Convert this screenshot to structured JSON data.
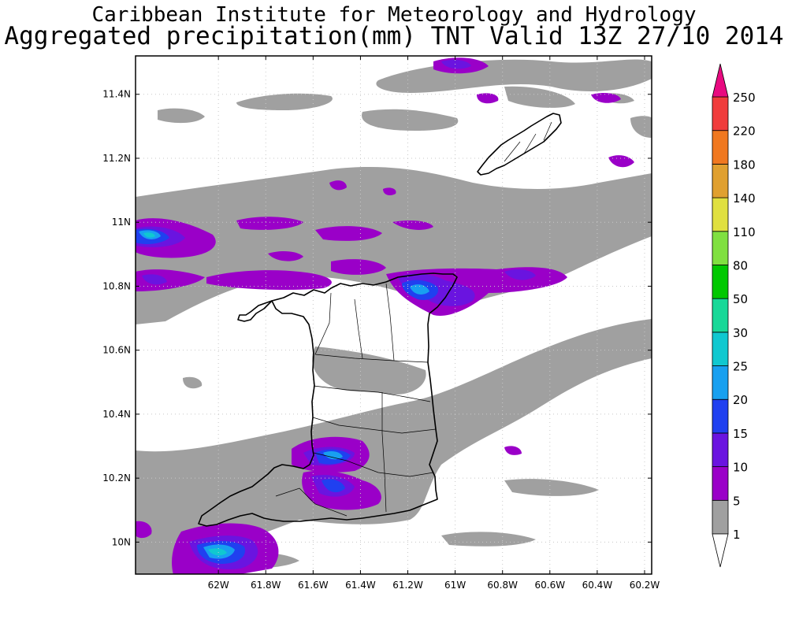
{
  "header": {
    "title_line1": "Caribbean Institute for Meteorology and Hydrology",
    "title_line2": "Aggregated precipitation(mm) TNT Valid 13Z 27/10 2014"
  },
  "map": {
    "lon_range": [
      -62.35,
      -60.17
    ],
    "lat_range": [
      9.9,
      11.52
    ],
    "lon_ticks": [
      {
        "value": -62.0,
        "label": "62W"
      },
      {
        "value": -61.8,
        "label": "61.8W"
      },
      {
        "value": -61.6,
        "label": "61.6W"
      },
      {
        "value": -61.4,
        "label": "61.4W"
      },
      {
        "value": -61.2,
        "label": "61.2W"
      },
      {
        "value": -61.0,
        "label": "61W"
      },
      {
        "value": -60.8,
        "label": "60.8W"
      },
      {
        "value": -60.6,
        "label": "60.6W"
      },
      {
        "value": -60.4,
        "label": "60.4W"
      },
      {
        "value": -60.2,
        "label": "60.2W"
      }
    ],
    "lat_ticks": [
      {
        "value": 10.0,
        "label": "10N"
      },
      {
        "value": 10.2,
        "label": "10.2N"
      },
      {
        "value": 10.4,
        "label": "10.4N"
      },
      {
        "value": 10.6,
        "label": "10.6N"
      },
      {
        "value": 10.8,
        "label": "10.8N"
      },
      {
        "value": 11.0,
        "label": "11N"
      },
      {
        "value": 11.2,
        "label": "11.2N"
      },
      {
        "value": 11.4,
        "label": "11.4N"
      }
    ],
    "grid": "dotted",
    "islands": [
      "Trinidad",
      "Tobago"
    ]
  },
  "colorbar": {
    "levels": [
      "1",
      "5",
      "10",
      "15",
      "20",
      "25",
      "30",
      "50",
      "80",
      "110",
      "140",
      "180",
      "220",
      "250"
    ],
    "colors": [
      "#a0a0a0",
      "#9a00c8",
      "#6a14e0",
      "#2040f0",
      "#18a0f0",
      "#10c8d0",
      "#18d898",
      "#00c800",
      "#80e040",
      "#e0e040",
      "#e0a030",
      "#f07820",
      "#f03c3c",
      "#e80a80"
    ],
    "lower_color": "#ffffff",
    "upper_color": "#e80a80"
  }
}
